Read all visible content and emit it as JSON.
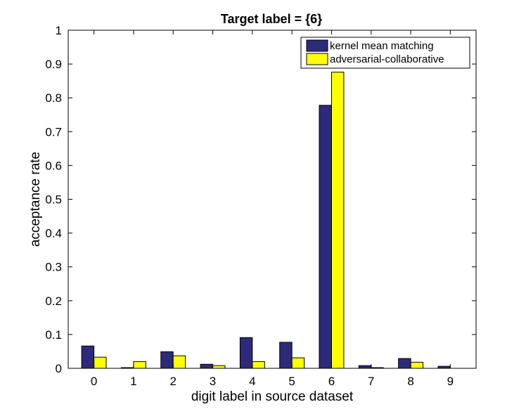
{
  "chart_data": {
    "type": "bar",
    "title": "Target label = {6}",
    "xlabel": "digit label in source dataset",
    "ylabel": "acceptance rate",
    "categories": [
      "0",
      "1",
      "2",
      "3",
      "4",
      "5",
      "6",
      "7",
      "8",
      "9"
    ],
    "ylim": [
      0,
      1
    ],
    "yticks": [
      "0",
      "0.1",
      "0.2",
      "0.3",
      "0.4",
      "0.5",
      "0.6",
      "0.7",
      "0.8",
      "0.9",
      "1"
    ],
    "legend_position": "top-right",
    "series": [
      {
        "name": "kernel mean matching",
        "color": "#2e2a7a",
        "values": [
          0.066,
          0.002,
          0.049,
          0.012,
          0.091,
          0.077,
          0.778,
          0.008,
          0.029,
          0.006
        ]
      },
      {
        "name": "adversarial-collaborative",
        "color": "#ffff00",
        "values": [
          0.033,
          0.02,
          0.037,
          0.008,
          0.02,
          0.031,
          0.876,
          0.002,
          0.018,
          0.0
        ]
      }
    ]
  }
}
